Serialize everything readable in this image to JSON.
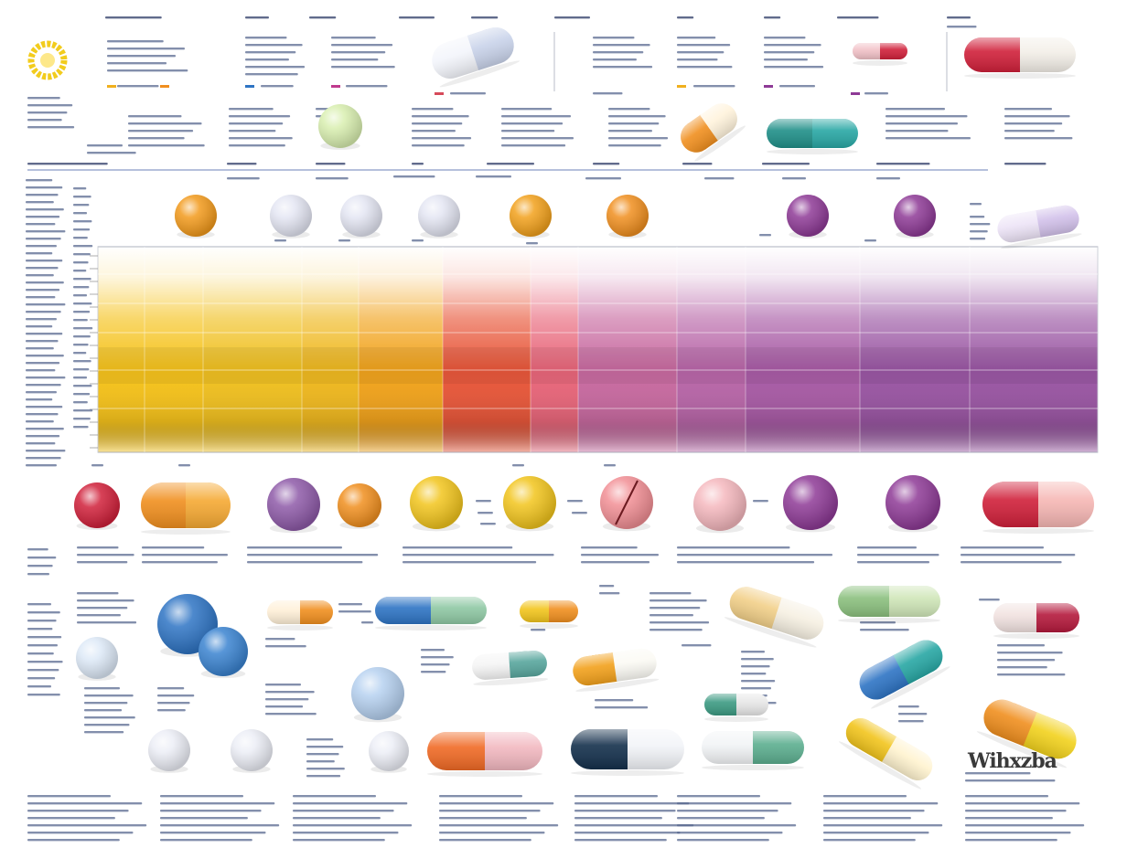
{
  "image": {
    "kind": "infographic-poster",
    "subject": "pills-and-capsules-color-chart",
    "logo_icon": "circle-logo-icon",
    "watermark_text": "Wihxzba",
    "legible_text": []
  },
  "palette": {
    "background": "#ffffff",
    "gradient_columns": [
      "#f5c21b",
      "#f5c21b",
      "#f0c020",
      "#efb81f",
      "#f1a31c",
      "#e8573a",
      "#e8667a",
      "#c86aa0",
      "#b866a8",
      "#a85ba5",
      "#9a56a3"
    ],
    "accent_orange": "#f08f1f",
    "accent_purple": "#8e3a96",
    "accent_red": "#d0203a",
    "accent_blue": "#2e74c4",
    "accent_teal": "#1f8f88",
    "accent_yellow": "#f2cc1d"
  },
  "pills": {
    "top_row": [
      "orange-pill-icon",
      "white-pill-icon",
      "white-pill-icon",
      "white-pill-icon",
      "orange-pill-icon",
      "orange-pill-icon",
      "purple-pill-icon",
      "purple-pill-icon",
      "lavender-capsule-icon"
    ],
    "middle_row": [
      "red-pill-icon",
      "orange-capsule-icon",
      "purple-pill-icon",
      "orange-pill-icon",
      "yellow-pill-icon",
      "yellow-pill-icon",
      "pink-pill-icon",
      "pink-pill-icon",
      "purple-pill-icon",
      "purple-pill-icon",
      "red-capsule-icon"
    ],
    "header_capsules": [
      "white-capsule-icon",
      "white-tablet-icon",
      "orange-capsule-icon",
      "teal-capsule-icon",
      "pink-capsule-icon",
      "red-capsule-icon"
    ],
    "bottom_items": [
      "blue-tablet-icon",
      "orange-capsule-icon",
      "blue-capsule-icon",
      "orange-capsule-icon",
      "teal-capsule-icon",
      "orange-capsule-icon",
      "yellow-capsule-icon",
      "green-capsule-icon",
      "red-capsule-icon",
      "blue-capsule-icon",
      "white-pill-icon",
      "navy-capsule-icon",
      "green-capsule-icon",
      "yellow-capsule-icon",
      "orange-capsule-icon"
    ]
  }
}
